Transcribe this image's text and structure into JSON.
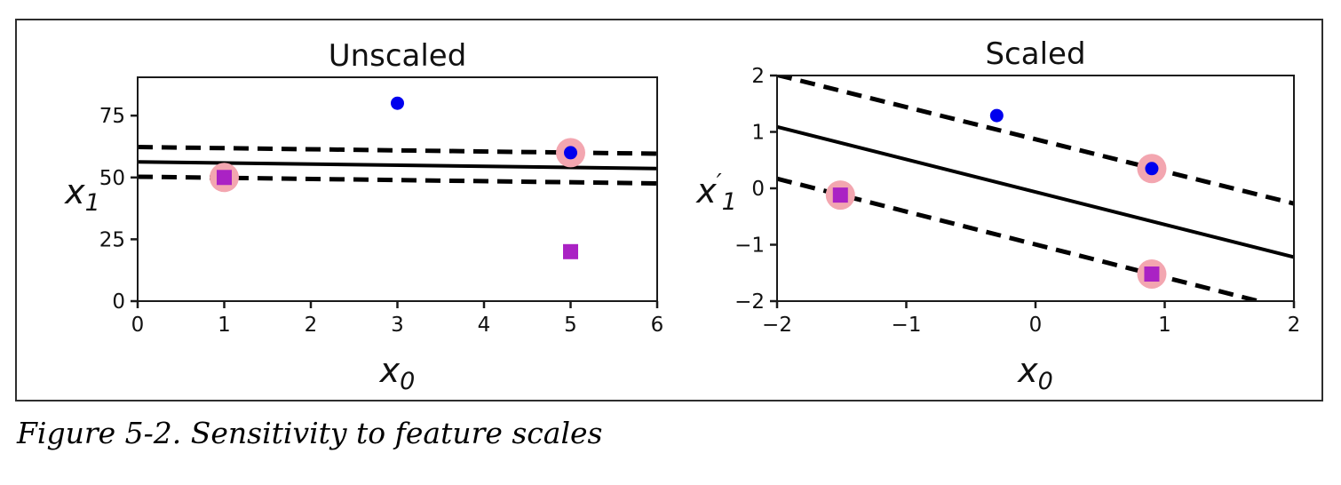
{
  "figure": {
    "caption": "Figure 5-2. Sensitivity to feature scales"
  },
  "colors": {
    "class1_marker": "#0000ee",
    "class0_marker": "#aa22c4",
    "support_highlight": "#f3a6b0",
    "line_color": "#000000",
    "axis_color": "#1a1a1a",
    "text_color": "#111111",
    "border_color": "#2e2e2e",
    "background": "#ffffff"
  },
  "chart_data": [
    {
      "type": "scatter",
      "title": "Unscaled",
      "xlabel": {
        "base": "x",
        "prime": "",
        "sub": "0"
      },
      "ylabel": {
        "base": "x",
        "prime": "",
        "sub": "1"
      },
      "xlim": [
        0,
        6
      ],
      "ylim": [
        0,
        90.5
      ],
      "xticks": [
        0,
        1,
        2,
        3,
        4,
        5,
        6
      ],
      "yticks": [
        0,
        25,
        50,
        75
      ],
      "grid": false,
      "legend": "none",
      "series": [
        {
          "name": "class-1-blue-circles",
          "marker": "circle",
          "color": "#0000ee",
          "points": [
            [
              3,
              80
            ],
            [
              5,
              60
            ]
          ]
        },
        {
          "name": "class-0-magenta-squares",
          "marker": "square",
          "color": "#aa22c4",
          "points": [
            [
              1,
              50
            ],
            [
              5,
              20
            ]
          ]
        }
      ],
      "support_vectors": [
        [
          1,
          50
        ],
        [
          5,
          60
        ]
      ],
      "lines": [
        {
          "name": "decision-boundary",
          "style": "solid",
          "points": [
            [
              0,
              56.3
            ],
            [
              6,
              53.6
            ]
          ]
        },
        {
          "name": "upper-margin",
          "style": "dashed",
          "points": [
            [
              0,
              62.3
            ],
            [
              6,
              59.6
            ]
          ]
        },
        {
          "name": "lower-margin",
          "style": "dashed",
          "points": [
            [
              0,
              50.3
            ],
            [
              6,
              47.6
            ]
          ]
        }
      ]
    },
    {
      "type": "scatter",
      "title": "Scaled",
      "xlabel": {
        "base": "x",
        "prime": "",
        "sub": "0"
      },
      "ylabel": {
        "base": "x",
        "prime": "′",
        "sub": "1"
      },
      "xlim": [
        -2,
        2
      ],
      "ylim": [
        -2,
        2
      ],
      "xticks": [
        -2,
        -1,
        0,
        1,
        2
      ],
      "yticks": [
        -2,
        -1,
        0,
        1,
        2
      ],
      "grid": false,
      "legend": "none",
      "series": [
        {
          "name": "class-1-blue-circles",
          "marker": "circle",
          "color": "#0000ee",
          "points": [
            [
              -0.3,
              1.29
            ],
            [
              0.9,
              0.35
            ]
          ]
        },
        {
          "name": "class-0-magenta-squares",
          "marker": "square",
          "color": "#aa22c4",
          "points": [
            [
              -1.51,
              -0.12
            ],
            [
              0.9,
              -1.52
            ]
          ]
        }
      ],
      "support_vectors": [
        [
          -1.51,
          -0.12
        ],
        [
          0.9,
          0.35
        ],
        [
          0.9,
          -1.52
        ]
      ],
      "lines": [
        {
          "name": "decision-boundary",
          "style": "solid",
          "points": [
            [
              -2,
              1.09
            ],
            [
              2,
              -1.22
            ]
          ]
        },
        {
          "name": "upper-margin",
          "style": "dashed",
          "points": [
            [
              -2,
              2.01
            ],
            [
              2,
              -0.27
            ]
          ]
        },
        {
          "name": "lower-margin",
          "style": "dashed",
          "points": [
            [
              -2,
              0.17
            ],
            [
              2,
              -2.16
            ]
          ]
        }
      ]
    }
  ]
}
